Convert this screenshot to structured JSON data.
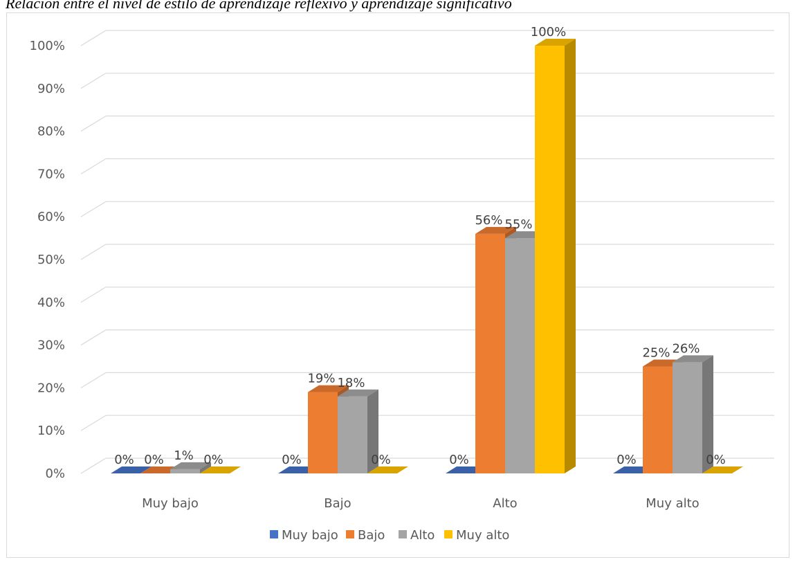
{
  "caption": "Relación entre el nivel de estilo de aprendizaje reflexivo y aprendizaje significativo",
  "chart_data": {
    "type": "bar",
    "title": "",
    "categories": [
      "Muy bajo",
      "Bajo",
      "Alto",
      "Muy alto"
    ],
    "series": [
      {
        "name": "Muy bajo",
        "color": "#4472C4",
        "values": [
          0,
          0,
          0,
          0
        ],
        "labels": [
          "0%",
          "0%",
          "0%",
          "0%"
        ]
      },
      {
        "name": "Bajo",
        "color": "#ED7D31",
        "values": [
          0,
          19,
          56,
          25
        ],
        "labels": [
          "0%",
          "19%",
          "56%",
          "25%"
        ]
      },
      {
        "name": "Alto",
        "color": "#A5A5A5",
        "values": [
          1,
          18,
          55,
          26
        ],
        "labels": [
          "1%",
          "18%",
          "55%",
          "26%"
        ]
      },
      {
        "name": "Muy alto",
        "color": "#FFC000",
        "values": [
          0,
          0,
          100,
          0
        ],
        "labels": [
          "0%",
          "0%",
          "100%",
          "0%"
        ]
      }
    ],
    "yticks": [
      "0%",
      "10%",
      "20%",
      "30%",
      "40%",
      "50%",
      "60%",
      "70%",
      "80%",
      "90%",
      "100%"
    ],
    "ylim": [
      0,
      100
    ],
    "grid": true,
    "legend": "bottom",
    "style": "3d-column"
  }
}
